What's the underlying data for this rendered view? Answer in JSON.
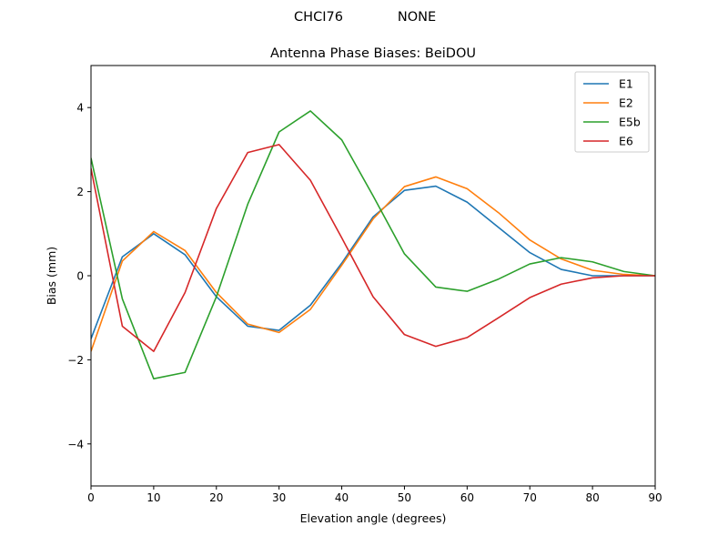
{
  "header": {
    "left": "CHCI76",
    "right": "NONE"
  },
  "chart_data": {
    "type": "line",
    "title": "Antenna Phase Biases: BeiDOU",
    "xlabel": "Elevation angle (degrees)",
    "ylabel": "Bias (mm)",
    "xlim": [
      0,
      90
    ],
    "ylim": [
      -5,
      5
    ],
    "xticks": [
      0,
      10,
      20,
      30,
      40,
      50,
      60,
      70,
      80,
      90
    ],
    "yticks": [
      -4,
      -2,
      0,
      2,
      4
    ],
    "ytick_labels": [
      "−4",
      "−2",
      "0",
      "2",
      "4"
    ],
    "grid": false,
    "legend": "top-right",
    "x": [
      0,
      5,
      10,
      15,
      20,
      25,
      30,
      35,
      40,
      45,
      50,
      55,
      60,
      65,
      70,
      75,
      80,
      85,
      90
    ],
    "series": [
      {
        "name": "E1",
        "color": "#1f77b4",
        "values": [
          -1.5,
          0.45,
          1.0,
          0.5,
          -0.5,
          -1.2,
          -1.3,
          -0.7,
          0.3,
          1.4,
          2.03,
          2.13,
          1.75,
          1.15,
          0.55,
          0.15,
          0.0,
          0.0,
          0.0
        ]
      },
      {
        "name": "E2",
        "color": "#ff7f0e",
        "values": [
          -1.8,
          0.35,
          1.05,
          0.6,
          -0.4,
          -1.15,
          -1.35,
          -0.8,
          0.25,
          1.35,
          2.12,
          2.35,
          2.07,
          1.5,
          0.85,
          0.4,
          0.13,
          0.03,
          0.0
        ]
      },
      {
        "name": "E5b",
        "color": "#2ca02c",
        "values": [
          2.8,
          -0.55,
          -2.45,
          -2.3,
          -0.5,
          1.7,
          3.42,
          3.92,
          3.23,
          1.9,
          0.52,
          -0.27,
          -0.37,
          -0.08,
          0.28,
          0.43,
          0.33,
          0.1,
          0.0
        ]
      },
      {
        "name": "E6",
        "color": "#d62728",
        "values": [
          2.55,
          -1.2,
          -1.8,
          -0.4,
          1.6,
          2.93,
          3.12,
          2.27,
          0.9,
          -0.5,
          -1.4,
          -1.68,
          -1.47,
          -1.0,
          -0.52,
          -0.2,
          -0.05,
          0.0,
          0.0
        ]
      }
    ]
  }
}
